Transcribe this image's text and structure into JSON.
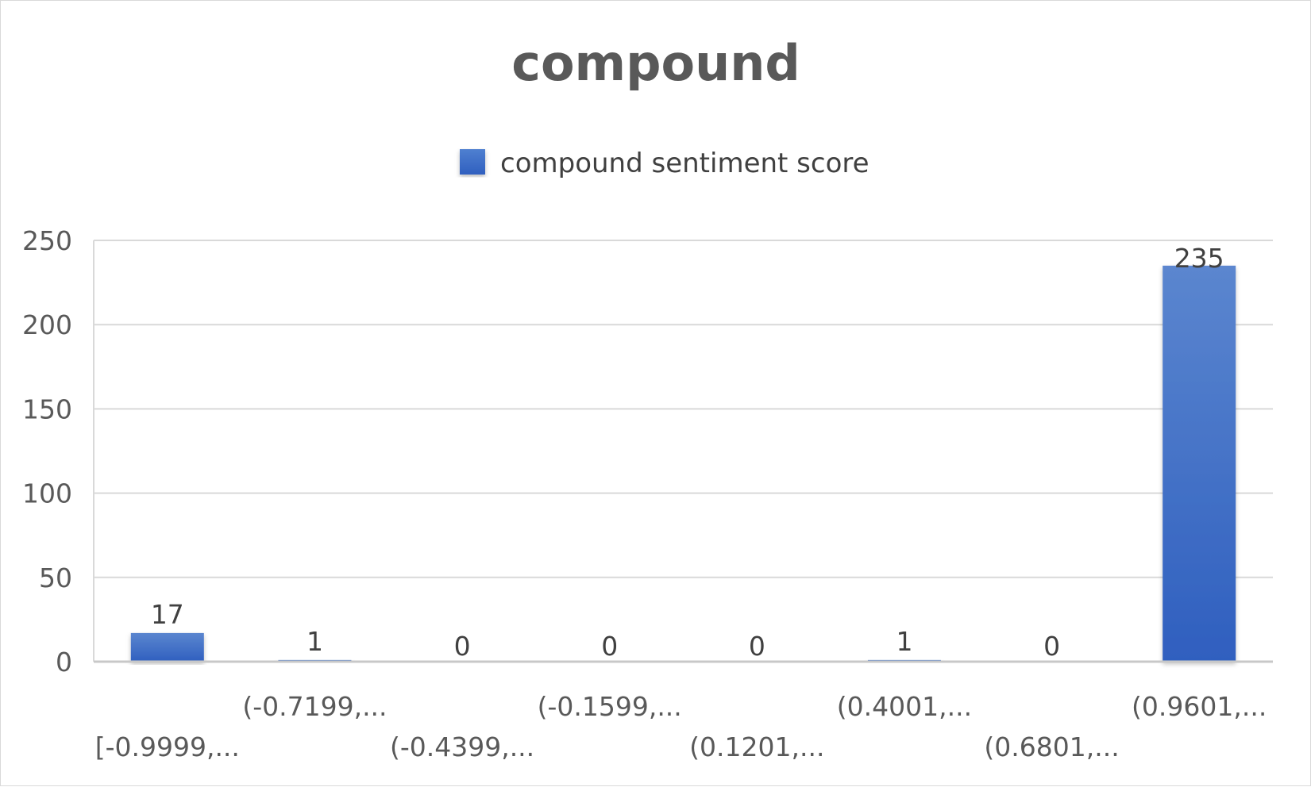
{
  "chart_data": {
    "type": "bar",
    "title": "compound",
    "xlabel": "",
    "ylabel": "",
    "categories": [
      "[-0.9999,...",
      "(-0.7199,...",
      "(-0.4399,...",
      "(-0.1599,...",
      "(0.1201,...",
      "(0.4001,...",
      "(0.6801,...",
      "(0.9601,..."
    ],
    "series": [
      {
        "name": "compound sentiment score",
        "values": [
          17,
          1,
          0,
          0,
          0,
          1,
          0,
          235
        ],
        "color": "#3a6cc8"
      }
    ],
    "y_ticks": [
      "0",
      "50",
      "100",
      "150",
      "200",
      "250"
    ],
    "ylim": [
      0,
      250
    ],
    "grid": true,
    "legend_position": "top",
    "data_labels": [
      "17",
      "1",
      "0",
      "0",
      "0",
      "1",
      "0",
      "235"
    ]
  }
}
